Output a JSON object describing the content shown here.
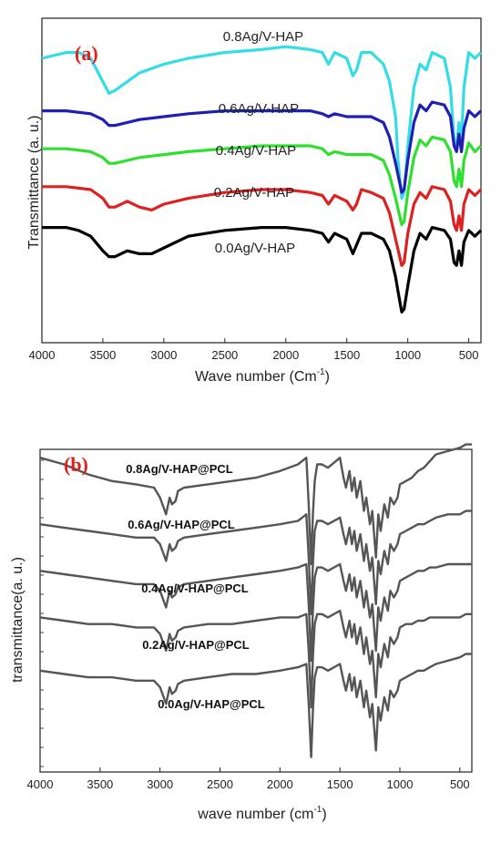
{
  "chart_data": [
    {
      "panel": "(a)",
      "type": "line",
      "xlabel": "Wave number (Cm",
      "xlabel_sup": "-1",
      "xlabel_tail": ")",
      "ylabel": "Transmittance (a. u.)",
      "x_ticks": [
        4000,
        3500,
        3000,
        2500,
        2000,
        1500,
        1000,
        500
      ],
      "xlim": [
        4000,
        400
      ],
      "series": [
        {
          "name": "0.8Ag/V-HAP",
          "color": "#33dde8",
          "x": [
            4000,
            3800,
            3700,
            3600,
            3500,
            3450,
            3400,
            3300,
            3200,
            3000,
            2800,
            2500,
            2200,
            2000,
            1800,
            1700,
            1650,
            1600,
            1500,
            1450,
            1420,
            1380,
            1300,
            1200,
            1150,
            1100,
            1080,
            1050,
            1030,
            1000,
            950,
            900,
            850,
            800,
            700,
            650,
            620,
            600,
            580,
            560,
            540,
            500,
            450,
            400
          ],
          "y": [
            90,
            92,
            92,
            90,
            82,
            78,
            79,
            82,
            85,
            88,
            90,
            92,
            93,
            94,
            93,
            92,
            88,
            92,
            90,
            84,
            86,
            92,
            92,
            88,
            82,
            70,
            55,
            42,
            44,
            60,
            80,
            88,
            86,
            92,
            90,
            80,
            62,
            60,
            68,
            62,
            80,
            92,
            90,
            92
          ]
        },
        {
          "name": "0.6Ag/V-HAP",
          "color": "#1f1fb5",
          "x": [
            4000,
            3800,
            3600,
            3500,
            3450,
            3400,
            3300,
            3200,
            3000,
            2800,
            2500,
            2200,
            2000,
            1800,
            1700,
            1650,
            1600,
            1500,
            1400,
            1300,
            1200,
            1150,
            1100,
            1050,
            1030,
            1000,
            950,
            900,
            850,
            800,
            700,
            650,
            620,
            600,
            580,
            560,
            540,
            500,
            450,
            400
          ],
          "y": [
            72,
            72,
            71,
            69,
            67,
            67,
            68,
            69,
            70,
            71,
            72,
            72,
            72,
            72,
            71,
            70,
            71,
            70,
            70,
            70,
            68,
            63,
            54,
            44,
            45,
            55,
            68,
            74,
            72,
            75,
            74,
            70,
            60,
            58,
            64,
            58,
            66,
            72,
            70,
            72
          ]
        },
        {
          "name": "0.4Ag/V-HAP",
          "color": "#2ee02e",
          "x": [
            4000,
            3800,
            3600,
            3500,
            3450,
            3400,
            3300,
            3200,
            3000,
            2800,
            2500,
            2200,
            2000,
            1800,
            1700,
            1650,
            1600,
            1500,
            1400,
            1300,
            1200,
            1150,
            1100,
            1050,
            1030,
            1000,
            950,
            900,
            850,
            800,
            700,
            650,
            620,
            600,
            580,
            560,
            540,
            500,
            450,
            400
          ],
          "y": [
            59,
            59,
            58,
            56,
            54,
            54,
            55,
            56,
            57,
            58,
            59,
            60,
            60,
            60,
            59,
            57,
            58,
            57,
            57,
            57,
            55,
            50,
            42,
            33,
            34,
            44,
            56,
            62,
            60,
            63,
            62,
            58,
            48,
            46,
            52,
            46,
            55,
            61,
            58,
            60
          ]
        },
        {
          "name": "0.2Ag/V-HAP",
          "color": "#dd2020",
          "x": [
            4000,
            3800,
            3600,
            3500,
            3450,
            3400,
            3300,
            3200,
            3100,
            3000,
            2800,
            2500,
            2200,
            2000,
            1800,
            1700,
            1650,
            1600,
            1500,
            1450,
            1420,
            1380,
            1300,
            1200,
            1150,
            1100,
            1050,
            1030,
            1000,
            950,
            900,
            850,
            800,
            700,
            650,
            620,
            600,
            580,
            560,
            540,
            500,
            450,
            400
          ],
          "y": [
            46,
            46,
            45,
            42,
            39,
            39,
            41,
            39,
            38,
            40,
            42,
            44,
            45,
            45,
            44,
            43,
            40,
            43,
            41,
            38,
            40,
            45,
            44,
            42,
            37,
            28,
            19,
            20,
            30,
            40,
            44,
            42,
            46,
            45,
            41,
            33,
            31,
            36,
            31,
            40,
            45,
            43,
            45
          ]
        },
        {
          "name": "0.0Ag/V-HAP",
          "color": "#000000",
          "x": [
            4000,
            3800,
            3700,
            3600,
            3500,
            3450,
            3400,
            3300,
            3200,
            3100,
            3000,
            2800,
            2500,
            2200,
            2000,
            1800,
            1700,
            1650,
            1600,
            1500,
            1450,
            1420,
            1380,
            1300,
            1200,
            1150,
            1100,
            1080,
            1050,
            1030,
            1000,
            950,
            900,
            850,
            800,
            700,
            650,
            620,
            600,
            580,
            560,
            540,
            500,
            450,
            400
          ],
          "y": [
            32,
            32,
            31,
            29,
            24,
            22,
            22,
            24,
            23,
            23,
            25,
            29,
            31,
            32,
            32,
            31,
            30,
            27,
            30,
            28,
            23,
            26,
            30,
            30,
            28,
            24,
            15,
            10,
            3,
            4,
            12,
            24,
            30,
            28,
            32,
            31,
            28,
            20,
            19,
            24,
            19,
            27,
            31,
            29,
            31
          ]
        }
      ]
    },
    {
      "panel": "(b)",
      "type": "line",
      "xlabel": "wave number (cm",
      "xlabel_sup": "-1",
      "xlabel_tail": ")",
      "ylabel": "transmittance(a. u.)",
      "x_ticks": [
        4000,
        3500,
        3000,
        2500,
        2000,
        1500,
        1000,
        500
      ],
      "xlim": [
        4000,
        400
      ],
      "color": "#555555",
      "series": [
        {
          "name": "0.8Ag/V-HAP@PCL",
          "x": [
            4000,
            3800,
            3600,
            3400,
            3200,
            3050,
            3000,
            2950,
            2920,
            2900,
            2870,
            2850,
            2800,
            2600,
            2400,
            2200,
            2000,
            1850,
            1780,
            1760,
            1740,
            1725,
            1710,
            1690,
            1650,
            1600,
            1500,
            1470,
            1450,
            1420,
            1400,
            1380,
            1360,
            1330,
            1300,
            1280,
            1250,
            1230,
            1200,
            1180,
            1160,
            1130,
            1100,
            1080,
            1050,
            1020,
            1000,
            950,
            900,
            850,
            800,
            750,
            700,
            600,
            500,
            450,
            400
          ],
          "y": [
            92,
            90,
            87,
            85,
            84,
            83,
            80,
            75,
            80,
            78,
            79,
            82,
            83,
            84,
            85,
            86,
            88,
            90,
            92,
            78,
            60,
            75,
            85,
            90,
            90,
            89,
            92,
            86,
            83,
            88,
            82,
            86,
            80,
            85,
            76,
            80,
            72,
            76,
            62,
            75,
            70,
            78,
            74,
            80,
            78,
            80,
            84,
            85,
            86,
            88,
            89,
            91,
            93,
            94,
            95,
            96,
            96
          ]
        },
        {
          "name": "0.6Ag/V-HAP@PCL",
          "x": [
            4000,
            3800,
            3600,
            3400,
            3200,
            3050,
            3000,
            2950,
            2920,
            2900,
            2870,
            2850,
            2800,
            2600,
            2400,
            2200,
            2000,
            1850,
            1780,
            1760,
            1740,
            1725,
            1710,
            1690,
            1650,
            1600,
            1500,
            1470,
            1450,
            1420,
            1400,
            1380,
            1360,
            1330,
            1300,
            1280,
            1250,
            1230,
            1200,
            1180,
            1160,
            1130,
            1100,
            1080,
            1050,
            1020,
            1000,
            950,
            900,
            850,
            800,
            750,
            700,
            600,
            500,
            450,
            400
          ],
          "y": [
            72,
            71,
            70,
            69,
            68,
            68,
            66,
            61,
            66,
            64,
            65,
            67,
            68,
            69,
            70,
            71,
            72,
            73,
            75,
            62,
            45,
            60,
            70,
            73,
            73,
            72,
            74,
            69,
            66,
            71,
            66,
            70,
            64,
            69,
            61,
            66,
            58,
            62,
            48,
            61,
            57,
            64,
            60,
            66,
            64,
            66,
            69,
            70,
            71,
            72,
            72,
            73,
            74,
            75,
            75,
            76,
            76
          ]
        },
        {
          "name": "0.4Ag/V-HAP@PCL",
          "x": [
            4000,
            3800,
            3600,
            3400,
            3200,
            3050,
            3000,
            2950,
            2920,
            2900,
            2870,
            2850,
            2800,
            2600,
            2400,
            2200,
            2000,
            1850,
            1780,
            1760,
            1740,
            1725,
            1710,
            1690,
            1650,
            1600,
            1500,
            1470,
            1450,
            1420,
            1400,
            1380,
            1360,
            1330,
            1300,
            1280,
            1250,
            1230,
            1200,
            1180,
            1160,
            1130,
            1100,
            1080,
            1050,
            1020,
            1000,
            950,
            900,
            850,
            800,
            750,
            700,
            600,
            500,
            450,
            400
          ],
          "y": [
            58,
            57,
            56,
            55,
            54,
            54,
            52,
            47,
            52,
            50,
            51,
            53,
            54,
            55,
            56,
            57,
            58,
            59,
            60,
            48,
            31,
            46,
            56,
            59,
            59,
            58,
            60,
            55,
            52,
            57,
            52,
            56,
            50,
            55,
            47,
            52,
            44,
            48,
            34,
            47,
            43,
            50,
            46,
            52,
            50,
            52,
            55,
            56,
            57,
            58,
            58,
            59,
            59,
            60,
            60,
            60,
            60
          ]
        },
        {
          "name": "0.2Ag/V-HAP@PCL",
          "x": [
            4000,
            3800,
            3600,
            3400,
            3200,
            3050,
            3000,
            2950,
            2920,
            2900,
            2870,
            2850,
            2800,
            2600,
            2400,
            2200,
            2000,
            1850,
            1780,
            1760,
            1740,
            1725,
            1710,
            1690,
            1650,
            1600,
            1500,
            1470,
            1450,
            1420,
            1400,
            1380,
            1360,
            1330,
            1300,
            1280,
            1250,
            1230,
            1200,
            1180,
            1160,
            1130,
            1100,
            1080,
            1050,
            1020,
            1000,
            950,
            900,
            850,
            800,
            750,
            700,
            600,
            500,
            450,
            400
          ],
          "y": [
            44,
            43,
            42,
            42,
            41,
            41,
            39,
            34,
            39,
            37,
            38,
            40,
            41,
            42,
            42,
            43,
            44,
            44,
            45,
            34,
            17,
            32,
            42,
            45,
            45,
            44,
            46,
            41,
            38,
            43,
            38,
            42,
            36,
            41,
            33,
            38,
            30,
            34,
            20,
            33,
            29,
            36,
            32,
            38,
            36,
            38,
            41,
            42,
            42,
            43,
            43,
            44,
            44,
            44,
            44,
            45,
            45
          ]
        },
        {
          "name": "0.0Ag/V-HAP@PCL",
          "x": [
            4000,
            3800,
            3600,
            3400,
            3200,
            3050,
            3000,
            2950,
            2920,
            2900,
            2870,
            2850,
            2800,
            2600,
            2400,
            2200,
            2000,
            1850,
            1780,
            1760,
            1740,
            1725,
            1710,
            1690,
            1650,
            1600,
            1500,
            1470,
            1450,
            1420,
            1400,
            1380,
            1360,
            1330,
            1300,
            1280,
            1250,
            1230,
            1200,
            1180,
            1160,
            1130,
            1100,
            1080,
            1050,
            1020,
            1000,
            950,
            900,
            850,
            800,
            750,
            700,
            600,
            500,
            450,
            400
          ],
          "y": [
            28,
            27,
            26,
            26,
            25,
            25,
            23,
            18,
            23,
            21,
            22,
            24,
            25,
            26,
            27,
            27,
            28,
            29,
            30,
            18,
            2,
            16,
            26,
            29,
            29,
            28,
            30,
            25,
            22,
            27,
            22,
            26,
            20,
            25,
            17,
            22,
            14,
            18,
            4,
            17,
            13,
            20,
            16,
            22,
            20,
            22,
            25,
            26,
            27,
            28,
            28,
            29,
            30,
            31,
            32,
            33,
            33
          ]
        }
      ]
    }
  ]
}
